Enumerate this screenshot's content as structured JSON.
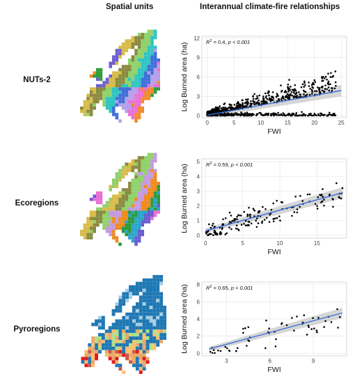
{
  "headers": {
    "left": "Spatial units",
    "right": "Interannual climate-fire relationships"
  },
  "rows": [
    {
      "label": "NUTs-2",
      "map_colors": [
        "#8fd16a",
        "#2ec4c4",
        "#3f6fd8",
        "#b79ee8",
        "#e96fd6",
        "#f08a2c",
        "#2e9e3c",
        "#6e5fd0",
        "#d8bb4a",
        "#8a8a40"
      ]
    },
    {
      "label": "Ecoregions",
      "map_colors": [
        "#8fd16a",
        "#c39ae0",
        "#f08a1c",
        "#2c9a3c",
        "#2ba5c9",
        "#6a5bd0",
        "#e96fd6",
        "#8fcf6a",
        "#d8bb4a",
        "#8a8a40"
      ]
    },
    {
      "label": "Pyroregions",
      "map_colors": [
        "#1f78b4",
        "#a6cee3",
        "#b2df8a",
        "#e8a76a",
        "#fdbf6f",
        "#e31a1c",
        "#c65a4a",
        "#d9d9d9"
      ]
    }
  ],
  "chart_data": [
    {
      "type": "scatter",
      "xlabel": "FWI",
      "ylabel": "Log Burned area (ha)",
      "xlim": [
        -1,
        26
      ],
      "ylim": [
        -0.3,
        12.3
      ],
      "xticks": [
        0,
        5,
        10,
        15,
        20,
        25
      ],
      "yticks": [
        0,
        3,
        6,
        9,
        12
      ],
      "annotation": {
        "r2": "0.4",
        "p": "p < 0.001"
      },
      "fit_line": {
        "x": [
          0,
          25
        ],
        "y": [
          0.1,
          3.9
        ]
      },
      "point_density": "dense",
      "grid": true
    },
    {
      "type": "scatter",
      "xlabel": "FWI",
      "ylabel": "Log Burned area (ha)",
      "xlim": [
        -0.5,
        19
      ],
      "ylim": [
        -0.2,
        5.2
      ],
      "xticks": [
        0,
        5,
        10,
        15
      ],
      "yticks": [
        0,
        1,
        2,
        3,
        4,
        5
      ],
      "annotation": {
        "r2": "0.59",
        "p": "p < 0.001"
      },
      "fit_line": {
        "x": [
          0,
          18.5
        ],
        "y": [
          0.3,
          2.9
        ]
      },
      "point_density": "medium",
      "grid": true
    },
    {
      "type": "scatter",
      "xlabel": "FWI",
      "ylabel": "Log Burned area (ha)",
      "xlim": [
        1.3,
        11.3
      ],
      "ylim": [
        -0.3,
        8.3
      ],
      "xticks": [
        3,
        6,
        9
      ],
      "yticks": [
        0,
        2,
        4,
        6,
        8
      ],
      "annotation": {
        "r2": "0.65",
        "p": "p < 0.001"
      },
      "fit_line": {
        "x": [
          1.8,
          11
        ],
        "y": [
          0.5,
          4.7
        ]
      },
      "point_density": "sparse",
      "grid": true
    }
  ]
}
